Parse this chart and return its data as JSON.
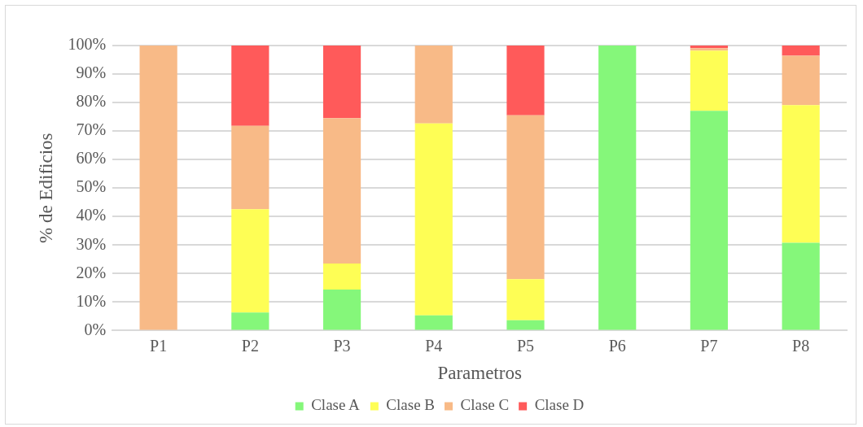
{
  "chart_data": {
    "type": "bar",
    "stacked": true,
    "xlabel": "Parametros",
    "ylabel": "% de Edificios",
    "categories": [
      "P1",
      "P2",
      "P3",
      "P4",
      "P5",
      "P6",
      "P7",
      "P8"
    ],
    "series": [
      {
        "name": "Clase A",
        "color": "#85f77a",
        "values": [
          0,
          6.3,
          14.4,
          5.3,
          3.6,
          100,
          77.1,
          30.8
        ]
      },
      {
        "name": "Clase B",
        "color": "#fefe55",
        "values": [
          0,
          36.3,
          9.1,
          67.4,
          14.4,
          0,
          21.1,
          48.3
        ]
      },
      {
        "name": "Clase C",
        "color": "#f8ba87",
        "values": [
          100,
          29.2,
          51,
          27.3,
          57.5,
          0,
          0.9,
          17.3
        ]
      },
      {
        "name": "Clase D",
        "color": "#ff5a5a",
        "values": [
          0,
          28.2,
          25.5,
          0,
          24.5,
          0,
          0.9,
          3.6
        ]
      }
    ],
    "ylim": [
      0,
      100
    ],
    "yticks": [
      {
        "value": 0,
        "label": "0%"
      },
      {
        "value": 10,
        "label": "10%"
      },
      {
        "value": 20,
        "label": "20%"
      },
      {
        "value": 30,
        "label": "30%"
      },
      {
        "value": 40,
        "label": "40%"
      },
      {
        "value": 50,
        "label": "50%"
      },
      {
        "value": 60,
        "label": "60%"
      },
      {
        "value": 70,
        "label": "70%"
      },
      {
        "value": 80,
        "label": "80%"
      },
      {
        "value": 90,
        "label": "90%"
      },
      {
        "value": 100,
        "label": "100%"
      }
    ],
    "grid": "y",
    "legend": "bottom"
  }
}
